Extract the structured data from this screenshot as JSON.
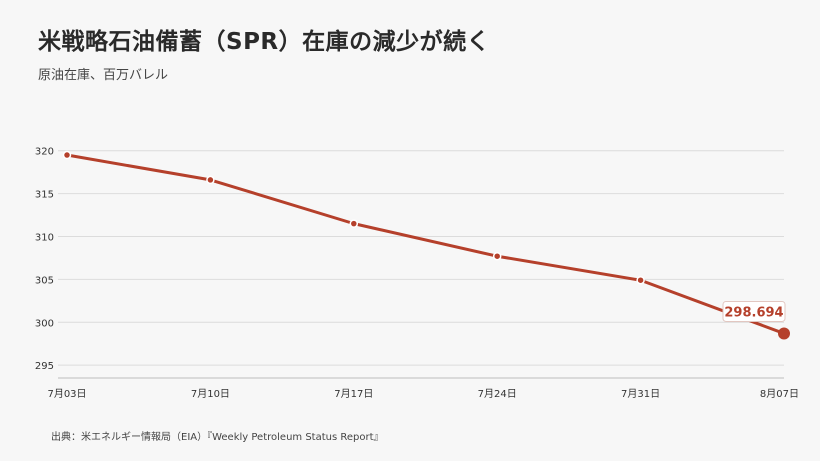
{
  "header": {
    "title": "米戦略石油備蓄（SPR）在庫の減少が続く",
    "subtitle": "原油在庫、百万バレル"
  },
  "footer": {
    "source": "出典：米エネルギー情報局（EIA）『Weekly Petroleum Status Report』"
  },
  "colors": {
    "line": "#b5402b",
    "grid": "#dcdcdc",
    "axis_text": "#333333",
    "background": "#f7f7f7"
  },
  "chart_data": {
    "type": "line",
    "title": "米戦略石油備蓄（SPR）在庫の減少が続く",
    "subtitle": "原油在庫、百万バレル",
    "categories": [
      "7月03日",
      "7月10日",
      "7月17日",
      "7月24日",
      "7月31日",
      "8月07日"
    ],
    "series": [
      {
        "values": [
          319.5,
          316.6,
          311.5,
          307.7,
          304.9,
          298.694
        ]
      }
    ],
    "yticks": [
      295,
      300,
      305,
      310,
      315,
      320
    ],
    "ylim": [
      293.5,
      323
    ],
    "grid": true,
    "annotation": {
      "index": 5,
      "label": "298.694"
    }
  }
}
